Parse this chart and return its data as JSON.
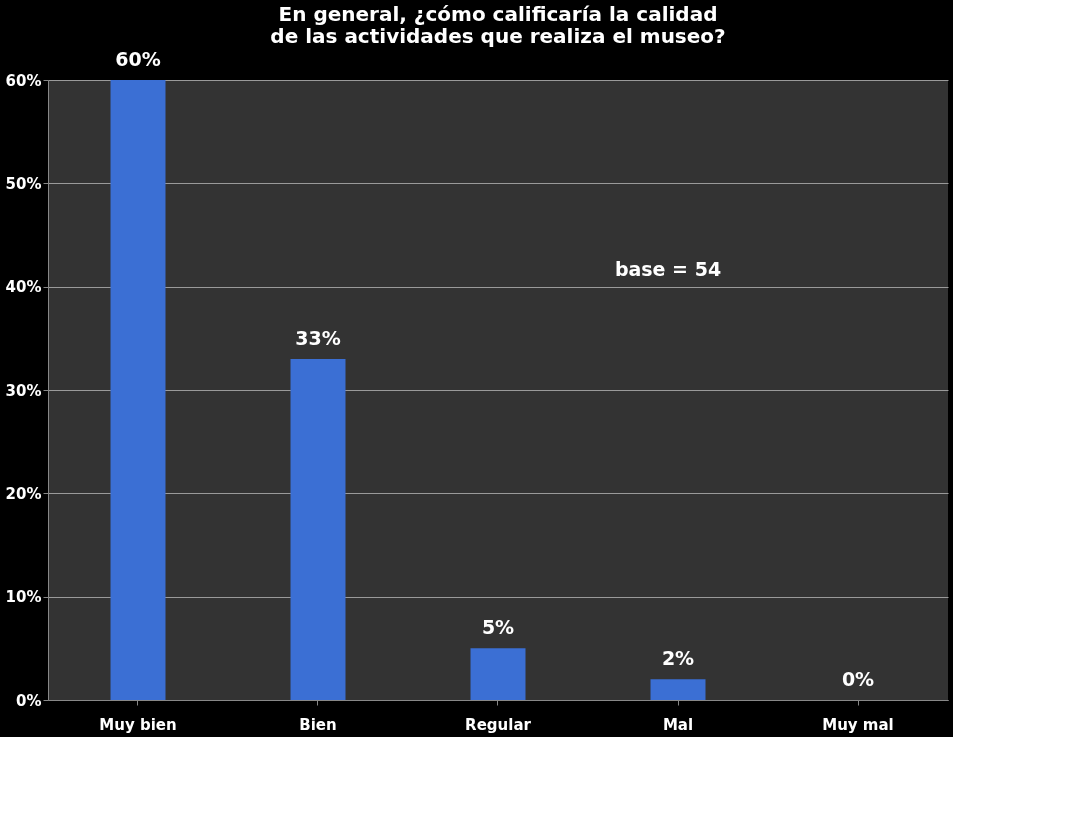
{
  "chart_data": {
    "type": "bar",
    "title": [
      "En general, ¿cómo calificaría la calidad",
      "de las actividades que realiza el museo?"
    ],
    "categories": [
      "Muy bien",
      "Bien",
      "Regular",
      "Mal",
      "Muy mal"
    ],
    "values": [
      60,
      33,
      5,
      2,
      0
    ],
    "color": "#3b6fd4",
    "value_labels": [
      "60%",
      "33%",
      "5%",
      "2%",
      "0%"
    ],
    "ylim": [
      0,
      60
    ],
    "yticks": [
      {
        "value": 0,
        "label": "0%"
      },
      {
        "value": 10,
        "label": "10%"
      },
      {
        "value": 20,
        "label": "20%"
      },
      {
        "value": 30,
        "label": "30%"
      },
      {
        "value": 40,
        "label": "40%"
      },
      {
        "value": 50,
        "label": "50%"
      },
      {
        "value": 60,
        "label": "60%"
      }
    ],
    "grid": "y",
    "annotations": [
      "base = 54"
    ]
  }
}
